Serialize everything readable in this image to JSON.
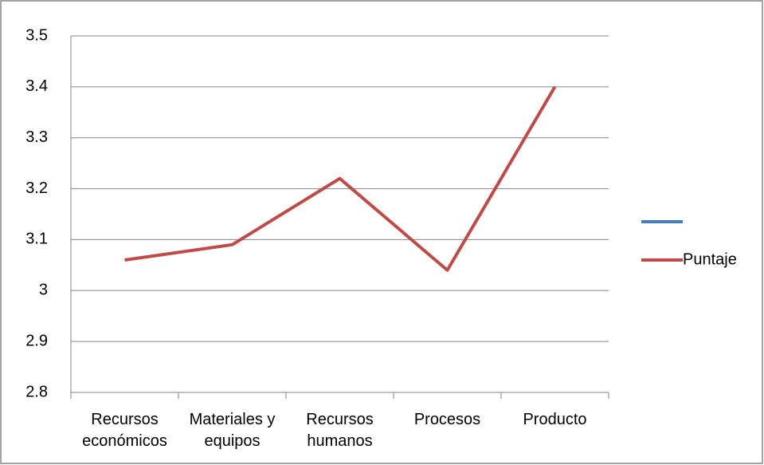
{
  "chart_data": {
    "type": "line",
    "categories": [
      "Recursos económicos",
      "Materiales y equipos",
      "Recursos humanos",
      "Procesos",
      "Producto"
    ],
    "series": [
      {
        "color": "#4a7ebb",
        "values": [
          null,
          null,
          null,
          null,
          null
        ]
      },
      {
        "name": "Puntaje",
        "color": "#be4b48",
        "values": [
          3.06,
          3.09,
          3.22,
          3.04,
          3.4
        ]
      }
    ],
    "ylim": [
      2.8,
      3.5
    ],
    "yticks": [
      2.8,
      2.9,
      3,
      3.1,
      3.2,
      3.3,
      3.4,
      3.5
    ],
    "grid": true,
    "legend": "right"
  }
}
